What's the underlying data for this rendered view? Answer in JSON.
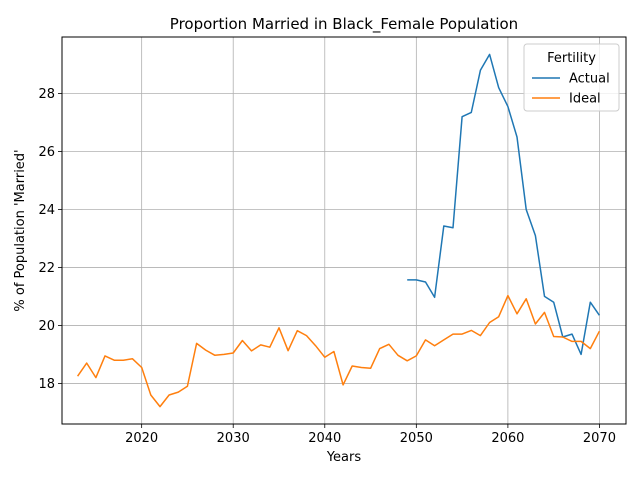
{
  "chart_data": {
    "type": "line",
    "title": "Proportion Married in Black_Female Population",
    "xlabel": "Years",
    "ylabel": "% of Population 'Married'",
    "xlim": [
      2011.3,
      2072.9
    ],
    "ylim": [
      16.6,
      29.95
    ],
    "x_ticks": [
      2020,
      2030,
      2040,
      2050,
      2060,
      2070
    ],
    "y_ticks": [
      18,
      20,
      22,
      24,
      26,
      28
    ],
    "grid": true,
    "legend": {
      "title": "Fertility",
      "position": "top-right"
    },
    "series": [
      {
        "name": "Actual",
        "color": "#1f77b4",
        "x": [
          2049,
          2050,
          2051,
          2052,
          2053,
          2054,
          2055,
          2056,
          2057,
          2058,
          2059,
          2060,
          2061,
          2062,
          2063,
          2064,
          2065,
          2066,
          2067,
          2068,
          2069,
          2070
        ],
        "y": [
          21.57,
          21.57,
          21.5,
          20.97,
          23.43,
          23.37,
          27.2,
          27.35,
          28.8,
          29.35,
          28.2,
          27.55,
          26.5,
          24.0,
          23.1,
          21.0,
          20.8,
          19.6,
          19.7,
          19.0,
          20.8,
          20.35
        ]
      },
      {
        "name": "Ideal",
        "color": "#ff7f0e",
        "x": [
          2013,
          2014,
          2015,
          2016,
          2017,
          2018,
          2019,
          2020,
          2021,
          2022,
          2023,
          2024,
          2025,
          2026,
          2027,
          2028,
          2029,
          2030,
          2031,
          2032,
          2033,
          2034,
          2035,
          2036,
          2037,
          2038,
          2039,
          2040,
          2041,
          2042,
          2043,
          2044,
          2045,
          2046,
          2047,
          2048,
          2049,
          2050,
          2051,
          2052,
          2053,
          2054,
          2055,
          2056,
          2057,
          2058,
          2059,
          2060,
          2061,
          2062,
          2063,
          2064,
          2065,
          2066,
          2067,
          2068,
          2069,
          2070
        ],
        "y": [
          18.25,
          18.7,
          18.2,
          18.95,
          18.8,
          18.8,
          18.85,
          18.55,
          17.6,
          17.2,
          17.6,
          17.7,
          17.9,
          19.38,
          19.15,
          18.97,
          19.0,
          19.05,
          19.48,
          19.12,
          19.33,
          19.25,
          19.92,
          19.13,
          19.82,
          19.65,
          19.3,
          18.9,
          19.1,
          17.95,
          18.6,
          18.55,
          18.52,
          19.2,
          19.35,
          18.97,
          18.78,
          18.95,
          19.5,
          19.3,
          19.5,
          19.7,
          19.7,
          19.83,
          19.65,
          20.1,
          20.3,
          21.03,
          20.4,
          20.92,
          20.05,
          20.45,
          19.62,
          19.6,
          19.45,
          19.45,
          19.2,
          19.8
        ]
      }
    ]
  }
}
